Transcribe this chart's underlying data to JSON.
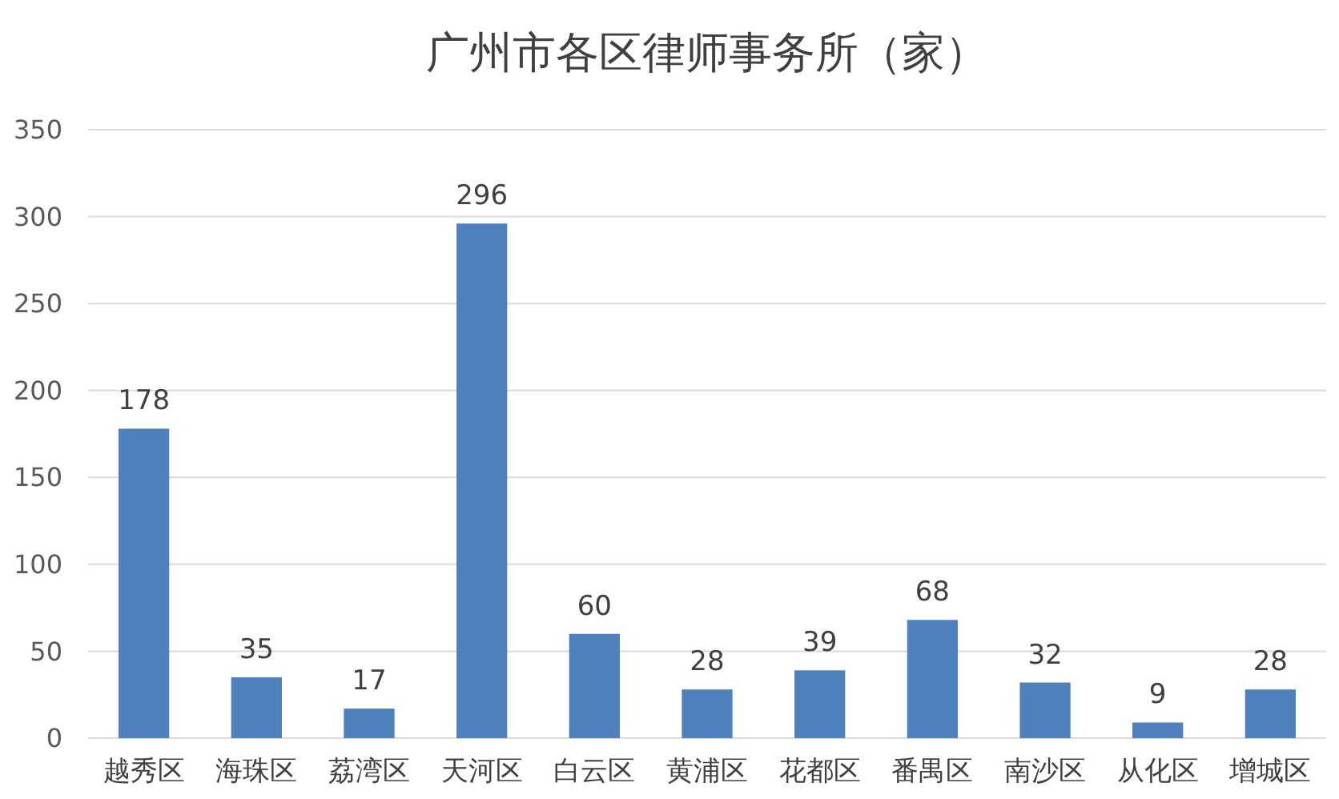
{
  "chart_data": {
    "type": "bar",
    "title": "广州市各区律师事务所（家）",
    "categories": [
      "越秀区",
      "海珠区",
      "荔湾区",
      "天河区",
      "白云区",
      "黄浦区",
      "花都区",
      "番禺区",
      "南沙区",
      "从化区",
      "增城区"
    ],
    "values": [
      178,
      35,
      17,
      296,
      60,
      28,
      39,
      68,
      32,
      9,
      28
    ],
    "color": "#4f81bd",
    "data_labels": true,
    "grid": "y",
    "ylim": [
      0,
      350
    ],
    "yticks": [
      0,
      50,
      100,
      150,
      200,
      250,
      300,
      350
    ]
  }
}
